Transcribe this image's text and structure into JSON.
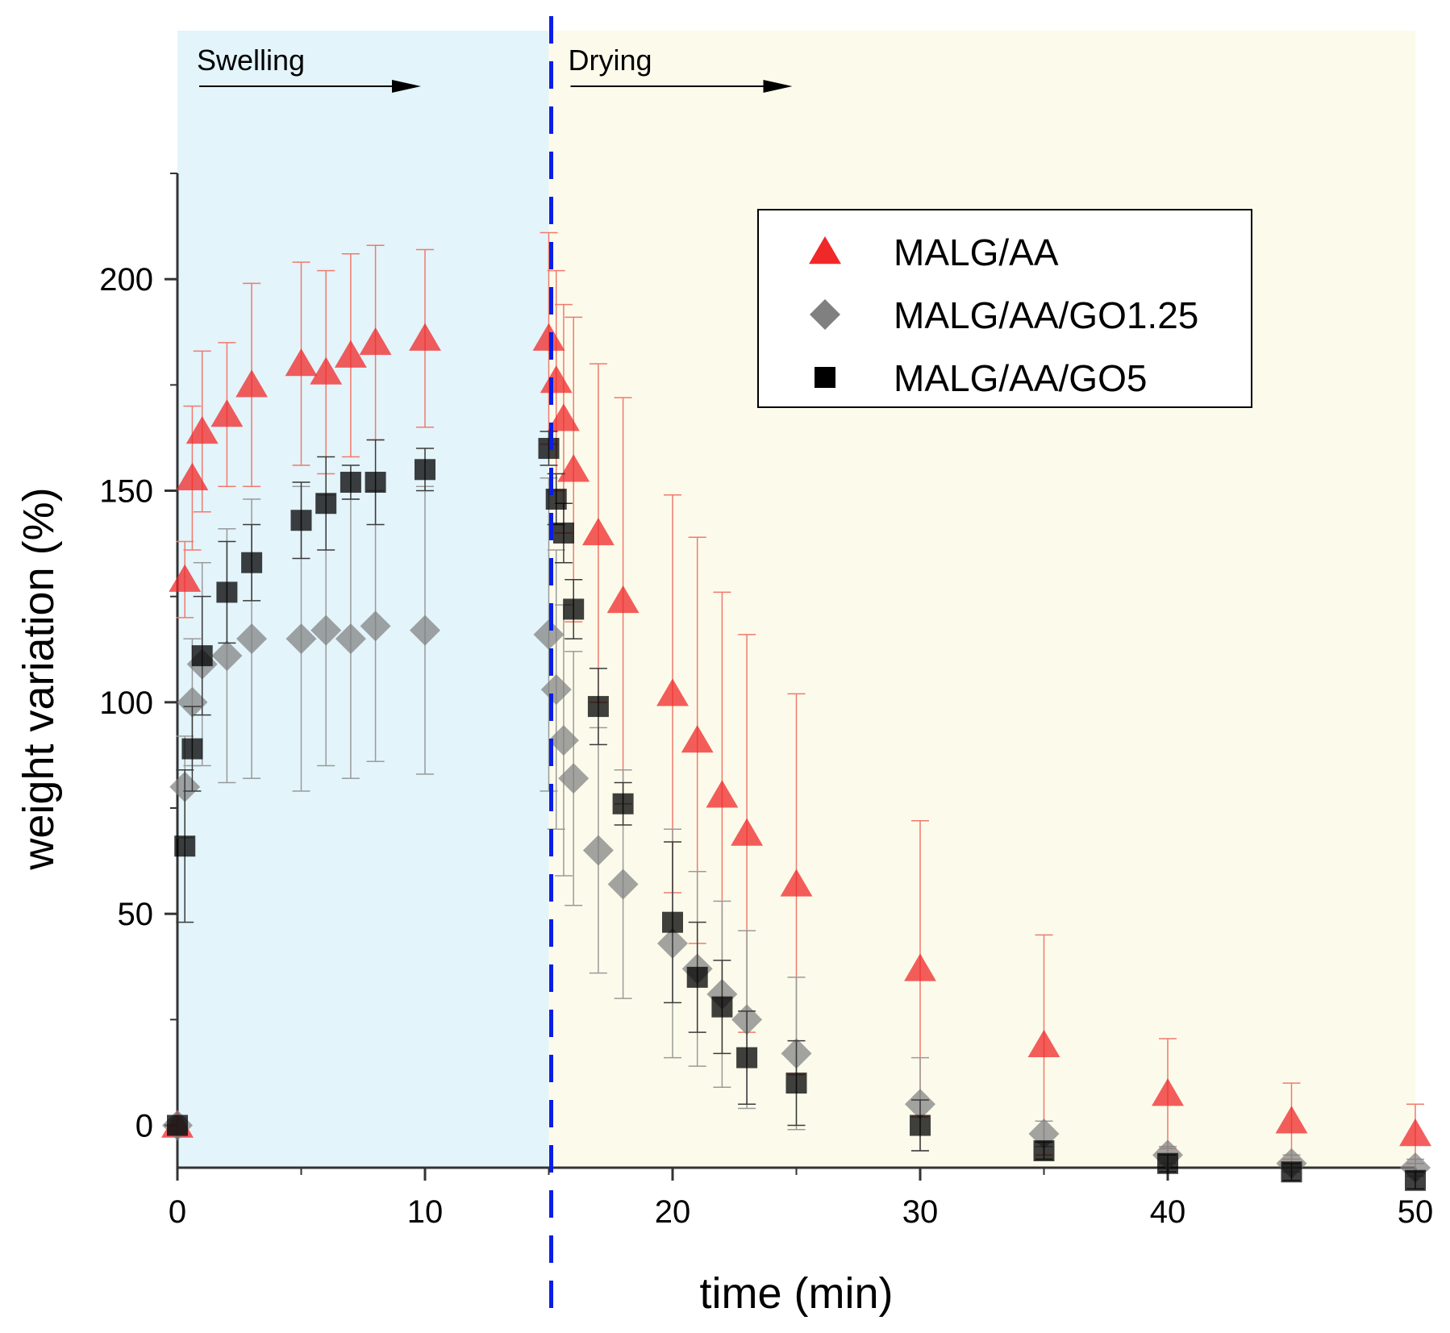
{
  "chart_data": {
    "type": "scatter",
    "xlabel": "time (min)",
    "ylabel": "weight variation (%)",
    "xlim": [
      0,
      50
    ],
    "ylim": [
      -10,
      225
    ],
    "x_ticks": [
      0,
      10,
      20,
      30,
      40,
      50
    ],
    "y_ticks": [
      0,
      50,
      100,
      150,
      200
    ],
    "grid": false,
    "legend_position": "top-right",
    "regions": [
      {
        "label": "Swelling",
        "from": 0,
        "to": 15,
        "color": "#e3f4fb"
      },
      {
        "label": "Drying",
        "from": 15,
        "to": 50,
        "color": "#fcfbeb"
      }
    ],
    "divider_x": 15,
    "divider_color": "#0a1ee6",
    "series": [
      {
        "name": "MALG/AA",
        "marker": "triangle",
        "color": "#f02828",
        "points": [
          {
            "x": 0,
            "y": 0,
            "err": 0
          },
          {
            "x": 0.3,
            "y": 129,
            "err": 9
          },
          {
            "x": 0.6,
            "y": 153,
            "err": 17
          },
          {
            "x": 1,
            "y": 164,
            "err": 19
          },
          {
            "x": 2,
            "y": 168,
            "err": 17
          },
          {
            "x": 3,
            "y": 175,
            "err": 24
          },
          {
            "x": 5,
            "y": 180,
            "err": 24
          },
          {
            "x": 6,
            "y": 178,
            "err": 24
          },
          {
            "x": 7,
            "y": 182,
            "err": 24
          },
          {
            "x": 8,
            "y": 185,
            "err": 23
          },
          {
            "x": 10,
            "y": 186,
            "err": 21
          },
          {
            "x": 15,
            "y": 186,
            "err": 25
          },
          {
            "x": 15.3,
            "y": 176,
            "err": 26
          },
          {
            "x": 15.6,
            "y": 167,
            "err": 27
          },
          {
            "x": 16,
            "y": 155,
            "err": 36
          },
          {
            "x": 17,
            "y": 140,
            "err": 40
          },
          {
            "x": 18,
            "y": 124,
            "err": 48
          },
          {
            "x": 20,
            "y": 102,
            "err": 47
          },
          {
            "x": 21,
            "y": 91,
            "err": 48
          },
          {
            "x": 22,
            "y": 78,
            "err": 48
          },
          {
            "x": 23,
            "y": 69,
            "err": 47
          },
          {
            "x": 25,
            "y": 57,
            "err": 45
          },
          {
            "x": 30,
            "y": 37,
            "err": 35
          },
          {
            "x": 35,
            "y": 19,
            "err": 26
          },
          {
            "x": 40,
            "y": 7.5,
            "err": 13
          },
          {
            "x": 45,
            "y": 1,
            "err": 9
          },
          {
            "x": 50,
            "y": -2,
            "err": 7
          }
        ]
      },
      {
        "name": "MALG/AA/GO1.25",
        "marker": "diamond",
        "color": "#808080",
        "points": [
          {
            "x": 0,
            "y": 0,
            "err": 0
          },
          {
            "x": 0.3,
            "y": 80,
            "err": 12
          },
          {
            "x": 0.6,
            "y": 100,
            "err": 15
          },
          {
            "x": 1,
            "y": 109,
            "err": 24
          },
          {
            "x": 2,
            "y": 111,
            "err": 30
          },
          {
            "x": 3,
            "y": 115,
            "err": 33
          },
          {
            "x": 5,
            "y": 115,
            "err": 36
          },
          {
            "x": 6,
            "y": 117,
            "err": 32
          },
          {
            "x": 7,
            "y": 115,
            "err": 33
          },
          {
            "x": 8,
            "y": 118,
            "err": 32
          },
          {
            "x": 10,
            "y": 117,
            "err": 34
          },
          {
            "x": 15,
            "y": 116,
            "err": 37
          },
          {
            "x": 15.3,
            "y": 103,
            "err": 33
          },
          {
            "x": 15.6,
            "y": 91,
            "err": 32
          },
          {
            "x": 16,
            "y": 82,
            "err": 30
          },
          {
            "x": 17,
            "y": 65,
            "err": 29
          },
          {
            "x": 18,
            "y": 57,
            "err": 27
          },
          {
            "x": 20,
            "y": 43,
            "err": 27
          },
          {
            "x": 21,
            "y": 37,
            "err": 23
          },
          {
            "x": 22,
            "y": 31,
            "err": 22
          },
          {
            "x": 23,
            "y": 25,
            "err": 21
          },
          {
            "x": 25,
            "y": 17,
            "err": 18
          },
          {
            "x": 30,
            "y": 5,
            "err": 11
          },
          {
            "x": 35,
            "y": -2,
            "err": 3
          },
          {
            "x": 40,
            "y": -7,
            "err": 2
          },
          {
            "x": 45,
            "y": -9,
            "err": 2
          },
          {
            "x": 50,
            "y": -10,
            "err": 2
          }
        ]
      },
      {
        "name": "MALG/AA/GO5",
        "marker": "square",
        "color": "#000000",
        "points": [
          {
            "x": 0,
            "y": 0,
            "err": 0
          },
          {
            "x": 0.3,
            "y": 66,
            "err": 18
          },
          {
            "x": 0.6,
            "y": 89,
            "err": 10
          },
          {
            "x": 1,
            "y": 111,
            "err": 14
          },
          {
            "x": 2,
            "y": 126,
            "err": 12
          },
          {
            "x": 3,
            "y": 133,
            "err": 9
          },
          {
            "x": 5,
            "y": 143,
            "err": 9
          },
          {
            "x": 6,
            "y": 147,
            "err": 11
          },
          {
            "x": 7,
            "y": 152,
            "err": 4
          },
          {
            "x": 8,
            "y": 152,
            "err": 10
          },
          {
            "x": 10,
            "y": 155,
            "err": 5
          },
          {
            "x": 15,
            "y": 160,
            "err": 4
          },
          {
            "x": 15.3,
            "y": 148,
            "err": 6
          },
          {
            "x": 15.6,
            "y": 140,
            "err": 7
          },
          {
            "x": 16,
            "y": 122,
            "err": 7
          },
          {
            "x": 17,
            "y": 99,
            "err": 9
          },
          {
            "x": 18,
            "y": 76,
            "err": 5
          },
          {
            "x": 20,
            "y": 48,
            "err": 19
          },
          {
            "x": 21,
            "y": 35,
            "err": 13
          },
          {
            "x": 22,
            "y": 28,
            "err": 11
          },
          {
            "x": 23,
            "y": 16,
            "err": 11
          },
          {
            "x": 25,
            "y": 10,
            "err": 10
          },
          {
            "x": 30,
            "y": 0,
            "err": 6
          },
          {
            "x": 35,
            "y": -6,
            "err": 2
          },
          {
            "x": 40,
            "y": -9,
            "err": 2
          },
          {
            "x": 45,
            "y": -11,
            "err": 2
          },
          {
            "x": 50,
            "y": -13,
            "err": 2
          }
        ]
      }
    ]
  }
}
